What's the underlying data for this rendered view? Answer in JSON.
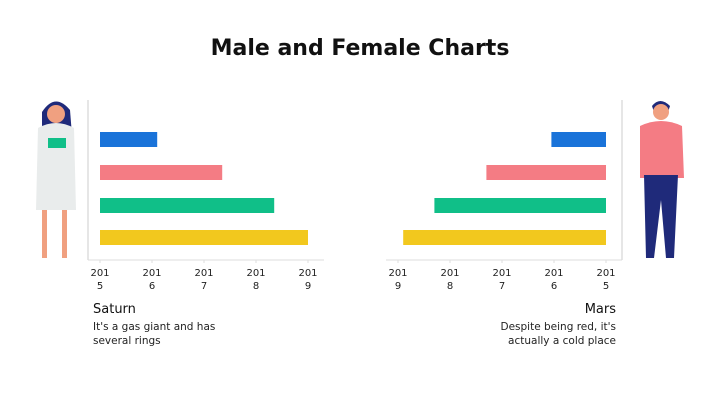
{
  "title": "Male and Female Charts",
  "chart_data": [
    {
      "type": "bar",
      "orientation": "horizontal",
      "name": "Saturn",
      "description": "It's a gas giant and has several rings",
      "values": [
        2016.1,
        2017.35,
        2018.35,
        2019
      ],
      "colors": [
        "#1a73d9",
        "#f47c84",
        "#10bf88",
        "#f2c81e"
      ],
      "xlim": [
        2015,
        2019
      ],
      "xticks": [
        2015,
        2016,
        2017,
        2018,
        2019
      ],
      "reversed": false
    },
    {
      "type": "bar",
      "orientation": "horizontal",
      "name": "Mars",
      "description": "Despite being red, it's actually a cold place",
      "values": [
        2016.05,
        2017.3,
        2018.3,
        2018.9
      ],
      "colors": [
        "#1a73d9",
        "#f47c84",
        "#10bf88",
        "#f2c81e"
      ],
      "xlim": [
        2015,
        2019
      ],
      "xticks": [
        2015,
        2016,
        2017,
        2018,
        2019
      ],
      "reversed": true
    }
  ]
}
